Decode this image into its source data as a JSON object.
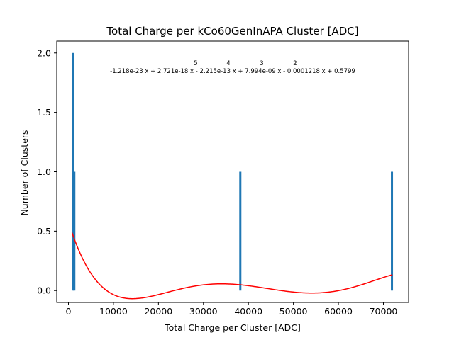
{
  "chart_data": {
    "type": "bar",
    "title": "Total Charge per kCo60GenInAPA Cluster [ADC]",
    "xlabel": "Total Charge per Cluster [ADC]",
    "ylabel": "Number of Clusters",
    "xlim": [
      -2600,
      75600
    ],
    "ylim": [
      -0.1,
      2.1
    ],
    "x_ticks": [
      0,
      10000,
      20000,
      30000,
      40000,
      50000,
      60000,
      70000
    ],
    "x_tick_labels": [
      "0",
      "10000",
      "20000",
      "30000",
      "40000",
      "50000",
      "60000",
      "70000"
    ],
    "y_ticks": [
      0.0,
      0.5,
      1.0,
      1.5,
      2.0
    ],
    "y_tick_labels": [
      "0.0",
      "0.5",
      "1.0",
      "1.5",
      "2.0"
    ],
    "grid": false,
    "bars": [
      {
        "x": 1000,
        "value": 2
      },
      {
        "x": 1300,
        "value": 1
      },
      {
        "x": 38200,
        "value": 1
      },
      {
        "x": 71900,
        "value": 1
      }
    ],
    "bar_color": "#1f77b4",
    "fit": {
      "color": "#ff0000",
      "coefficients": [
        -1.218e-23,
        2.721e-18,
        -2.215e-13,
        7.994e-09,
        -0.0001218,
        0.5799
      ],
      "x_range": [
        800,
        72000
      ],
      "exponents_line": "5 4 3 2",
      "formula_text": "-1.218e-23 x + 2.721e-18 x - 2.215e-13 x + 7.994e-09 x - 0.0001218 x + 0.5799"
    }
  }
}
